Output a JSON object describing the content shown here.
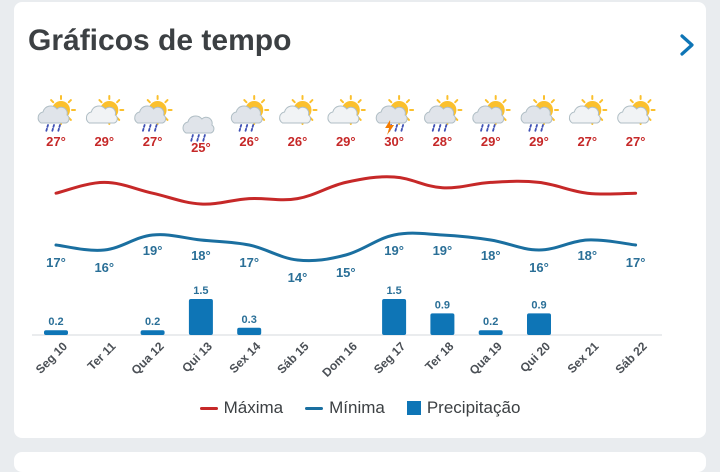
{
  "header": {
    "title": "Gráficos de tempo",
    "next_icon": "chevron-right-icon"
  },
  "colors": {
    "max": "#c62828",
    "min": "#1a6fa0",
    "precip": "#0e75b6",
    "text_max": "#c62828",
    "text_min": "#2a6f97"
  },
  "legend": {
    "max_label": "Máxima",
    "min_label": "Mínima",
    "precip_label": "Precipitação"
  },
  "chart_data": {
    "type": "line",
    "categories": [
      "Seg 10",
      "Ter 11",
      "Qua 12",
      "Qui 13",
      "Sex 14",
      "Sáb 15",
      "Dom 16",
      "Seg 17",
      "Ter 18",
      "Qua 19",
      "Qui 20",
      "Sex 21",
      "Sáb 22"
    ],
    "icons": [
      "sun-cloud-rain-icon",
      "sun-cloud-icon",
      "sun-cloud-rain-icon",
      "cloud-rain-icon",
      "sun-cloud-rain-icon",
      "sun-cloud-icon",
      "sun-cloud-icon",
      "sun-cloud-storm-icon",
      "sun-cloud-rain-icon",
      "sun-cloud-rain-icon",
      "sun-cloud-rain-icon",
      "sun-cloud-icon",
      "sun-cloud-icon"
    ],
    "series": [
      {
        "name": "Máxima",
        "values": [
          27,
          29,
          27,
          25,
          26,
          26,
          29,
          30,
          28,
          29,
          29,
          27,
          27
        ],
        "labels": [
          "27°",
          "29°",
          "27°",
          "25°",
          "26°",
          "26°",
          "29°",
          "30°",
          "28°",
          "29°",
          "29°",
          "27°",
          "27°"
        ]
      },
      {
        "name": "Mínima",
        "values": [
          17,
          16,
          19,
          18,
          17,
          14,
          15,
          19,
          19,
          18,
          16,
          18,
          17
        ],
        "labels": [
          "17°",
          "16°",
          "19°",
          "18°",
          "17°",
          "14°",
          "15°",
          "19°",
          "19°",
          "18°",
          "16°",
          "18°",
          "17°"
        ]
      },
      {
        "name": "Precipitação",
        "values": [
          0.2,
          0,
          0.2,
          1.5,
          0.3,
          0,
          0,
          1.5,
          0.9,
          0.2,
          0.9,
          0,
          0
        ],
        "labels": [
          "0.2",
          "",
          "0.2",
          "1.5",
          "0.3",
          "",
          "",
          "1.5",
          "0.9",
          "0.2",
          "0.9",
          "",
          ""
        ]
      }
    ]
  }
}
